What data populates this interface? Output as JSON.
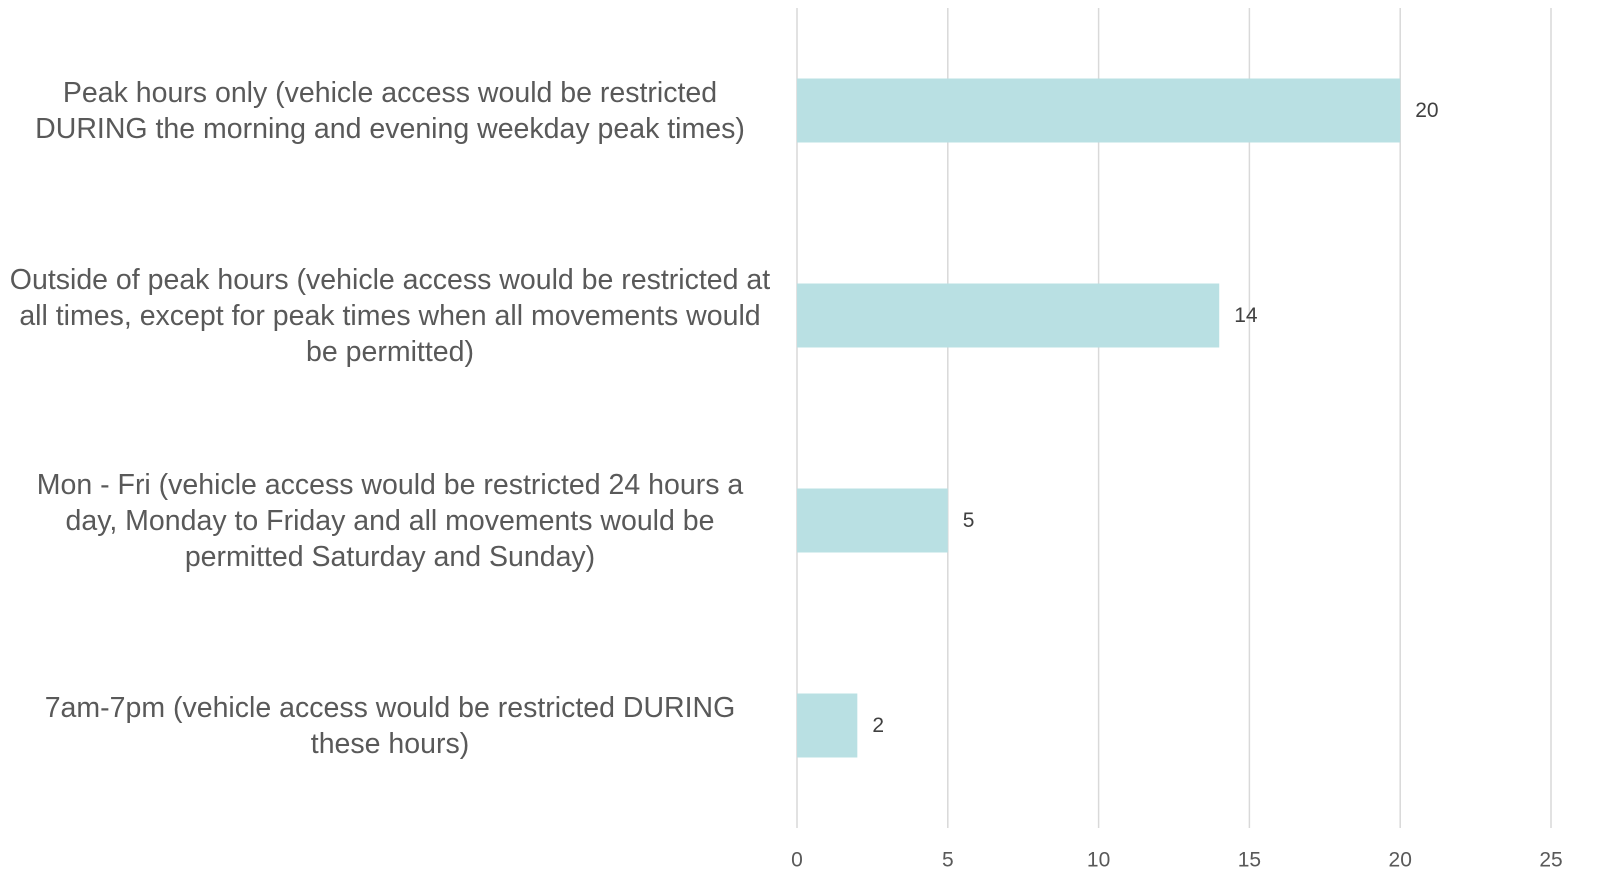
{
  "chart_data": {
    "type": "bar",
    "orientation": "horizontal",
    "categories": [
      "Peak hours only (vehicle access would be restricted DURING the morning and evening weekday peak times)",
      "Outside of peak hours (vehicle access would be restricted at all times, except for peak times when all movements would be permitted)",
      "Mon - Fri (vehicle access would be restricted 24 hours a day, Monday to Friday and all movements would be permitted Saturday and Sunday)",
      "7am-7pm (vehicle access would be restricted DURING these hours)"
    ],
    "values": [
      20,
      14,
      5,
      2
    ],
    "color": "#b9e0e3",
    "xlim": [
      0,
      25
    ],
    "xticks": [
      0,
      5,
      10,
      15,
      20,
      25
    ],
    "grid": true
  }
}
